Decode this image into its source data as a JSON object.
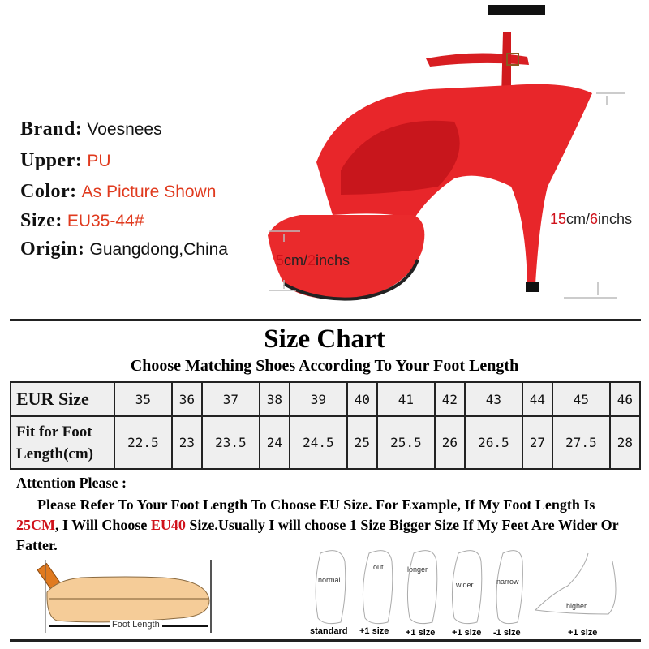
{
  "specs": [
    {
      "label": "Brand:",
      "value": "Voesnees",
      "accent": false
    },
    {
      "label": "Upper:",
      "value": "PU",
      "accent": true
    },
    {
      "label": "Color:",
      "value": "As Picture Shown",
      "accent": true
    },
    {
      "label": "Size:",
      "value": "EU35-44#",
      "accent": true
    },
    {
      "label": "Origin:",
      "value": "Guangdong,China",
      "accent": false
    }
  ],
  "dimensions": {
    "platform": {
      "cm": "5",
      "sep": "cm/",
      "inch": "2",
      "unit": "inchs"
    },
    "heel": {
      "cm": "15",
      "sep": "cm/",
      "inch": "6",
      "unit": "inchs"
    }
  },
  "size_chart": {
    "title": "Size Chart",
    "subtitle": "Choose Matching Shoes According To Your Foot Length",
    "row_headers": [
      "EUR Size",
      "Fit for Foot",
      "Length(cm)"
    ],
    "eur": [
      "35",
      "36",
      "37",
      "38",
      "39",
      "40",
      "41",
      "42",
      "43",
      "44",
      "45",
      "46"
    ],
    "foot_cm": [
      "22.5",
      "23",
      "23.5",
      "24",
      "24.5",
      "25",
      "25.5",
      "26",
      "26.5",
      "27",
      "27.5",
      "28"
    ]
  },
  "attention": {
    "heading": "Attention Please :",
    "p1": "Please Refer To Your Foot Length To Choose EU Size. For Example, If My Foot Length Is ",
    "r1": "25CM",
    "p2": ", I Will Choose ",
    "r2": "EU40",
    "p3": " Size.Usually I will choose 1 Size Bigger Size If My Feet Are Wider Or Fatter."
  },
  "measure_label": "Foot Length",
  "foot_types": [
    {
      "tag": "normal",
      "size": "standard"
    },
    {
      "tag": "out",
      "size": "+1 size"
    },
    {
      "tag": "longer",
      "size": "+1 size"
    },
    {
      "tag": "wider",
      "size": "+1 size"
    },
    {
      "tag": "narrow",
      "size": "-1 size"
    },
    {
      "tag": "higher",
      "size": "+1 size"
    }
  ],
  "colors": {
    "accent": "#e03a1e",
    "shoe": "#e8262a",
    "highlight": "#d0121b"
  }
}
